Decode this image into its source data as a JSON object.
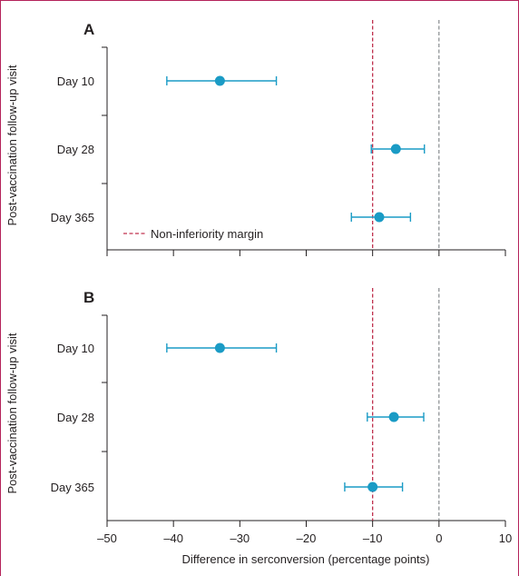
{
  "colors": {
    "point": "#1a9bc5",
    "margin_line": "#c0304d",
    "zero_line": "#6f7478",
    "axis": "#231f20",
    "frame": "#b4235a"
  },
  "chart_data": {
    "type": "scatter",
    "ylabel": "Post-vaccination follow-up visit",
    "xlabel": "Difference in serconversion (percentage points)",
    "xlim": [
      -50,
      10
    ],
    "xticks": [
      -50,
      -40,
      -30,
      -20,
      -10,
      0,
      10
    ],
    "xtick_labels": [
      "–50",
      "–40",
      "–30",
      "–20",
      "–10",
      "0",
      "10"
    ],
    "margin": -10,
    "legend": {
      "label": "Non-inferiority margin",
      "placement": "bottom-left"
    },
    "panels": [
      {
        "label": "A",
        "categories": [
          "Day 10",
          "Day 28",
          "Day 365"
        ],
        "estimates": [
          -33,
          -6.5,
          -9
        ],
        "ci_lower": [
          -41,
          -10.2,
          -13.2
        ],
        "ci_upper": [
          -24.5,
          -2.2,
          -4.3
        ]
      },
      {
        "label": "B",
        "categories": [
          "Day 10",
          "Day 28",
          "Day 365"
        ],
        "estimates": [
          -33,
          -6.8,
          -10
        ],
        "ci_lower": [
          -41,
          -10.8,
          -14.2
        ],
        "ci_upper": [
          -24.5,
          -2.3,
          -5.5
        ]
      }
    ]
  }
}
